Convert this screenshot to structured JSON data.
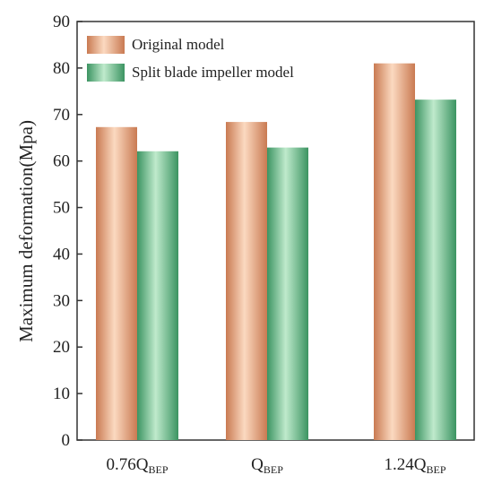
{
  "chart_data": {
    "type": "bar",
    "ylabel": "Maximum deformation(Mpa)",
    "xlabel": "",
    "ylim": [
      0,
      90
    ],
    "yticks": [
      0,
      10,
      20,
      30,
      40,
      50,
      60,
      70,
      80,
      90
    ],
    "categories": [
      {
        "main": "0.76Q",
        "sub": "BEP"
      },
      {
        "main": "Q",
        "sub": "BEP"
      },
      {
        "main": "1.24Q",
        "sub": "BEP"
      }
    ],
    "series": [
      {
        "name": "Original model",
        "values": [
          67.3,
          68.4,
          81.0
        ],
        "color": "#f2b48f",
        "color_dark": "#cf7f58"
      },
      {
        "name": "Split blade impeller model",
        "values": [
          62.1,
          62.9,
          73.2
        ],
        "color": "#8fd3a8",
        "color_dark": "#3f9a66"
      }
    ],
    "legend_position": "top-left",
    "grid": false
  }
}
